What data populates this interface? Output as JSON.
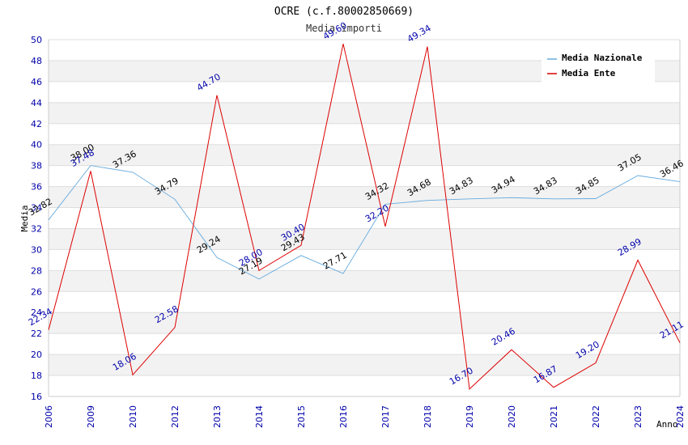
{
  "chart_data": {
    "type": "line",
    "title": "OCRE (c.f.80002850669)",
    "subtitle": "Media importi",
    "xlabel": "Anno",
    "ylabel": "Media",
    "ylim": [
      16,
      50
    ],
    "yticks": [
      "16",
      "18",
      "20",
      "22",
      "24",
      "26",
      "28",
      "30",
      "32",
      "34",
      "36",
      "38",
      "40",
      "42",
      "44",
      "46",
      "48",
      "50"
    ],
    "categories": [
      "2006",
      "2009",
      "2010",
      "2012",
      "2013",
      "2014",
      "2015",
      "2016",
      "2017",
      "2018",
      "2019",
      "2020",
      "2021",
      "2022",
      "2023",
      "2024"
    ],
    "legend_position": "top-right",
    "series": [
      {
        "name": "Media Nazionale",
        "color": "#66aadd",
        "values": [
          32.82,
          38.0,
          37.36,
          34.79,
          29.24,
          27.19,
          29.43,
          27.71,
          34.32,
          34.68,
          34.83,
          34.94,
          34.83,
          34.85,
          37.05,
          36.46
        ],
        "labels": [
          "32.82",
          "38.00",
          "37.36",
          "34.79",
          "29.24",
          "27.19",
          "29.43",
          "27.71",
          "34.32",
          "34.68",
          "34.83",
          "34.94",
          "34.83",
          "34.85",
          "37.05",
          "36.46"
        ]
      },
      {
        "name": "Media Ente",
        "color": "#dd0000",
        "values": [
          22.34,
          37.48,
          18.06,
          22.58,
          44.7,
          28.0,
          30.4,
          49.6,
          32.2,
          49.34,
          16.7,
          20.46,
          16.87,
          19.2,
          28.99,
          21.11
        ],
        "labels": [
          "22.34",
          "37.48",
          "18.06",
          "22.58",
          "44.70",
          "28.00",
          "30.40",
          "49.60",
          "32.20",
          "49.34",
          "16.70",
          "20.46",
          "16.87",
          "19.20",
          "28.99",
          "21.11"
        ]
      }
    ]
  }
}
